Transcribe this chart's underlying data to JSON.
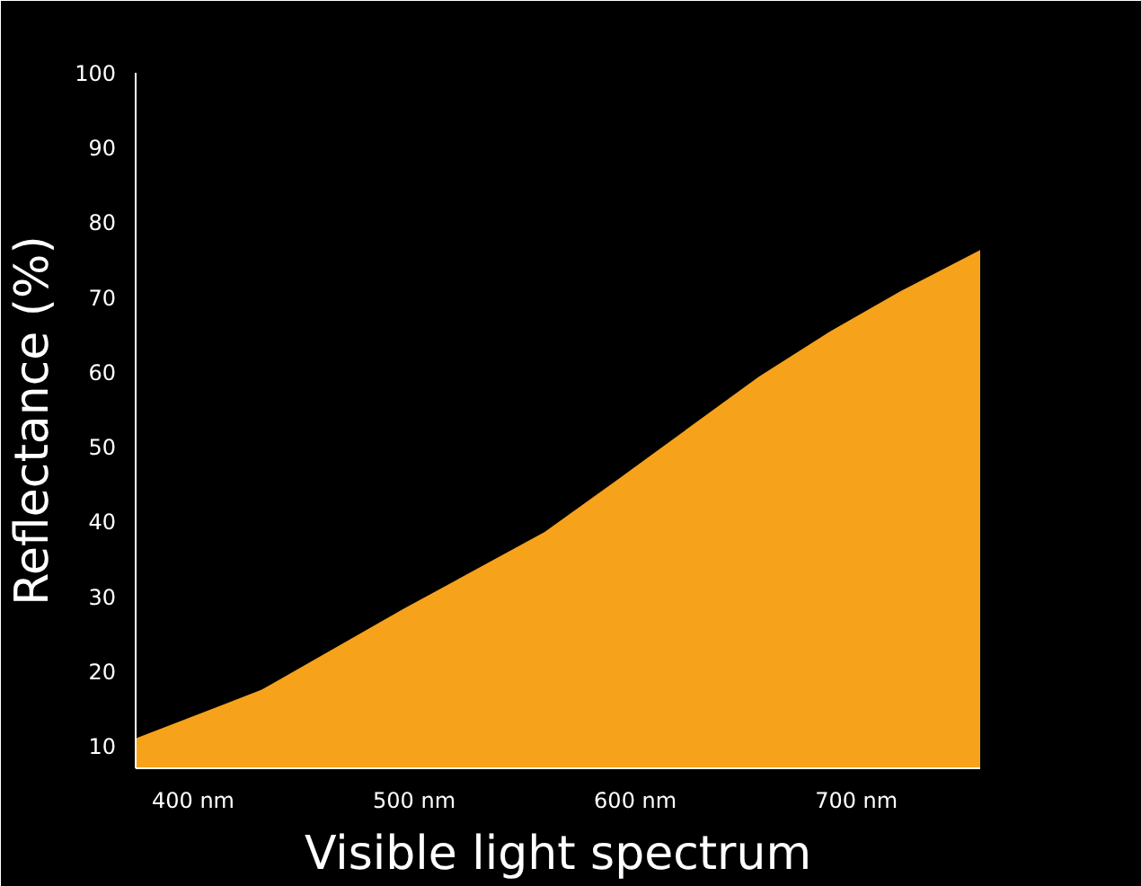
{
  "chart_data": {
    "type": "area",
    "xlabel": "Visible light spectrum",
    "ylabel": "Reflectance (%)",
    "x": [
      374,
      431,
      495,
      559,
      592,
      624,
      656,
      688,
      720,
      756
    ],
    "series": [
      {
        "color": "#f7a21b",
        "values": [
          11,
          17.5,
          28.3,
          38.6,
          45.6,
          52.5,
          59.4,
          65.4,
          70.8,
          76.3
        ]
      }
    ],
    "xlim": [
      374,
      756
    ],
    "ylim": [
      7,
      100
    ],
    "xticks": [
      {
        "value": 400,
        "label": "400 nm"
      },
      {
        "value": 500,
        "label": "500 nm"
      },
      {
        "value": 600,
        "label": "600 nm"
      },
      {
        "value": 700,
        "label": "700 nm"
      }
    ],
    "yticks": [
      10,
      20,
      30,
      40,
      50,
      60,
      70,
      80,
      90,
      100
    ],
    "marker": "none"
  }
}
